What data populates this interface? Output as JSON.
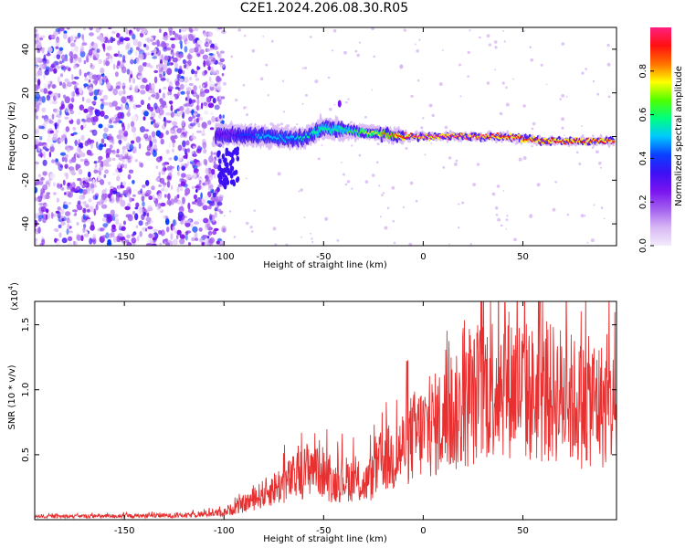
{
  "title": "C2E1.2024.206.08.30.R05",
  "colors": {
    "snr_line": "#e83030",
    "colormap": [
      "#f2ecfb",
      "#d8b8f4",
      "#a260ef",
      "#7a14f0",
      "#3c10f4",
      "#0a40ff",
      "#00c8ff",
      "#00ff80",
      "#50ff00",
      "#ffff00",
      "#ff7000",
      "#ff1010",
      "#ff2080"
    ]
  },
  "chart_data": [
    {
      "type": "heatmap",
      "title": "C2E1.2024.206.08.30.R05",
      "xlabel": "Height of straight line (km)",
      "ylabel": "Frequency (Hz)",
      "xlim": [
        -195,
        97
      ],
      "ylim": [
        -50,
        50
      ],
      "x_ticks": [
        -150,
        -100,
        -50,
        0,
        50
      ],
      "y_ticks": [
        -40,
        -20,
        0,
        20,
        40
      ],
      "colorbar": {
        "label": "Normalized spectral amplitude",
        "range": [
          0.0,
          1.0
        ],
        "ticks": [
          "0.0",
          "0.2",
          "0.4",
          "0.6",
          "0.8"
        ]
      },
      "ridge": {
        "description": "High-amplitude signal ridge near 0 Hz",
        "x": [
          -100,
          -80,
          -60,
          -50,
          -40,
          -30,
          -20,
          -10,
          0,
          20,
          40,
          60,
          80,
          95
        ],
        "frequency_hz": [
          1,
          0,
          -1,
          4,
          3,
          2,
          1,
          0,
          0,
          0,
          0,
          -2,
          -2,
          -2
        ],
        "amplitude": [
          0.3,
          0.5,
          0.55,
          0.6,
          0.6,
          0.7,
          0.8,
          0.95,
          0.97,
          0.97,
          0.95,
          0.9,
          0.92,
          0.9
        ]
      },
      "noise_region": {
        "x_range": [
          -195,
          -100
        ],
        "amplitude": 0.15
      }
    },
    {
      "type": "line",
      "xlabel": "Height of straight line (km)",
      "ylabel": "SNR (10 * v/v)",
      "y_multiplier": "(x10",
      "y_multiplier_exp": "4",
      "y_multiplier_close": ")",
      "xlim": [
        -195,
        97
      ],
      "ylim": [
        0,
        16800
      ],
      "x_ticks": [
        -150,
        -100,
        -50,
        0,
        50
      ],
      "y_ticks": [
        "0.5",
        "1.0",
        "1.5"
      ],
      "y_tick_values": [
        5000,
        10000,
        15000
      ],
      "series": [
        {
          "envelope_x": [
            -195,
            -150,
            -120,
            -100,
            -90,
            -80,
            -70,
            -60,
            -55,
            -50,
            -45,
            -40,
            -35,
            -30,
            -25,
            -20,
            -15,
            -10,
            -5,
            0,
            5,
            10,
            15,
            20,
            25,
            30,
            35,
            40,
            45,
            50,
            55,
            60,
            65,
            70,
            75,
            80,
            85,
            90,
            97
          ],
          "envelope_y": [
            300,
            350,
            400,
            700,
            1500,
            2500,
            3500,
            4500,
            5600,
            4500,
            3500,
            4000,
            3800,
            3300,
            4200,
            6000,
            5800,
            7000,
            8000,
            8500,
            9000,
            9500,
            10000,
            10500,
            11500,
            12500,
            13000,
            13500,
            13000,
            12500,
            12000,
            11800,
            12200,
            12000,
            11500,
            11000,
            11500,
            11000,
            10500
          ],
          "peak": {
            "x": 41,
            "y": 16700
          }
        }
      ]
    }
  ]
}
